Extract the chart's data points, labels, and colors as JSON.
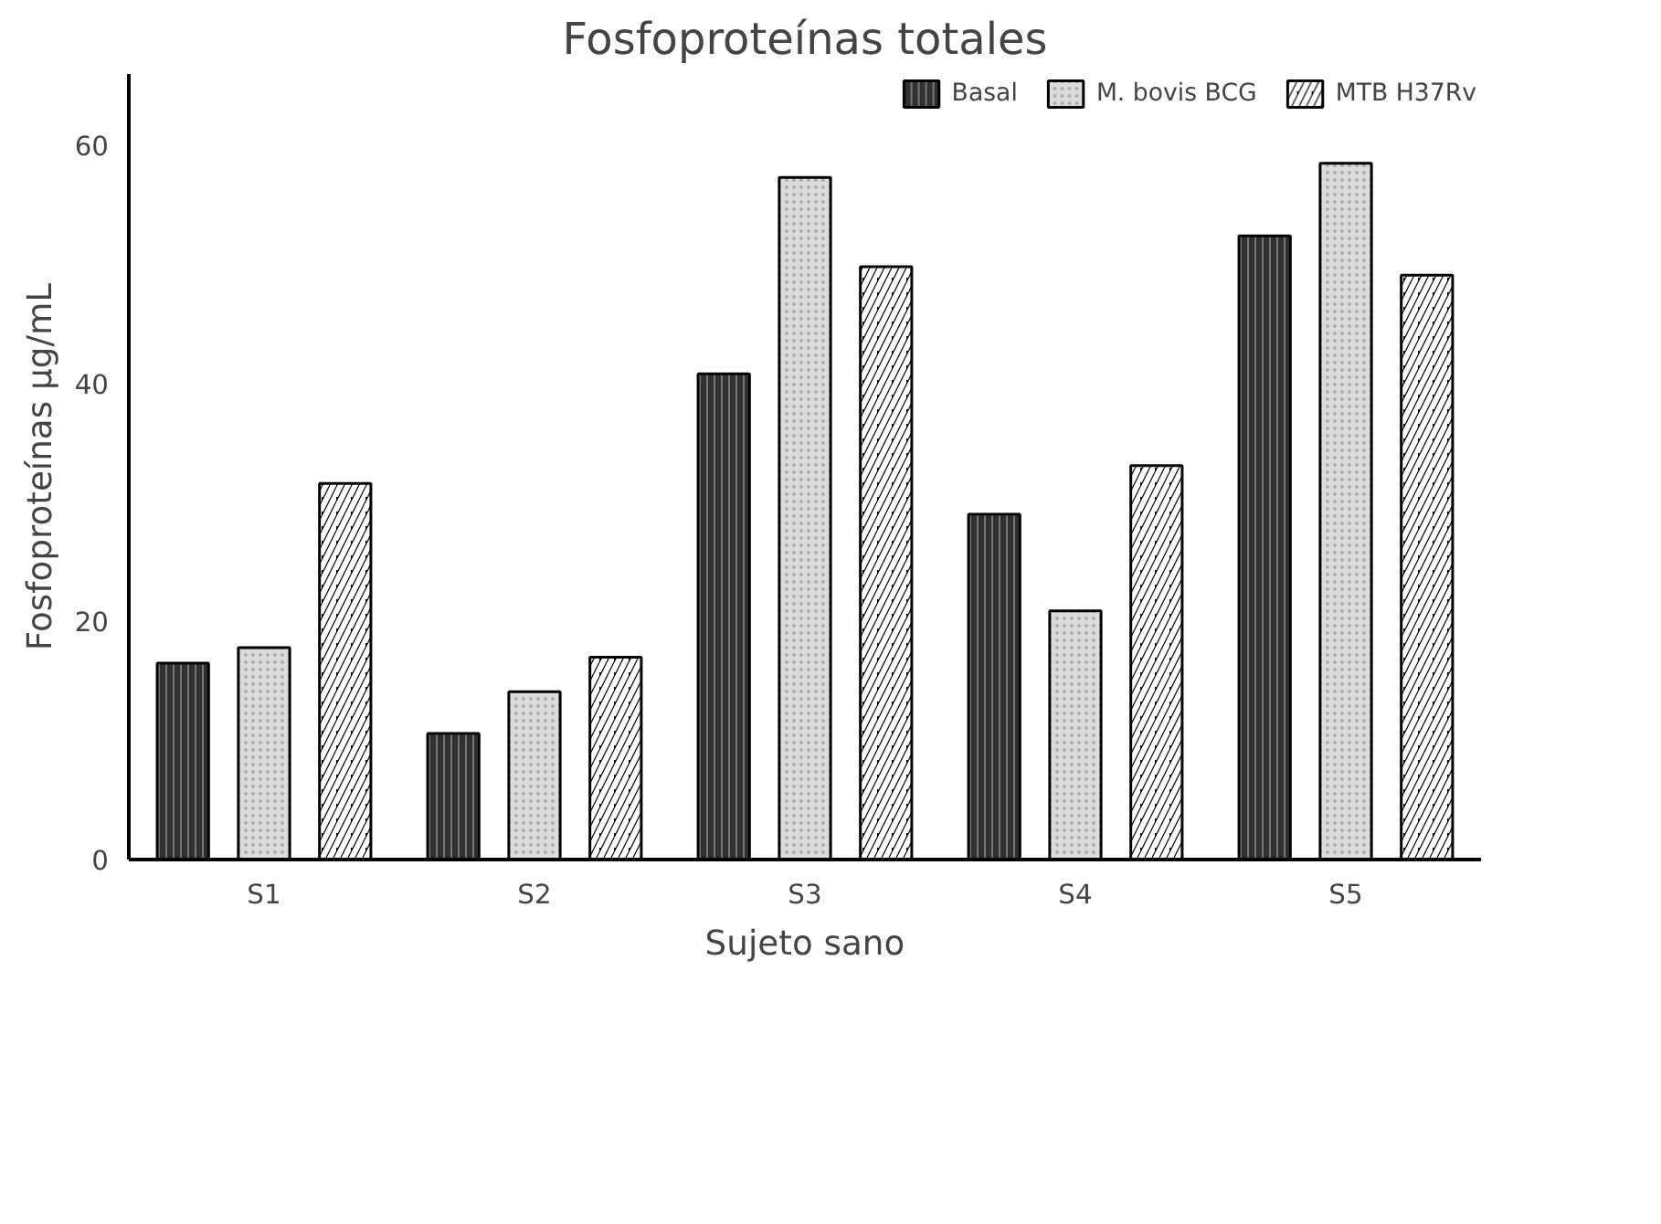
{
  "chart_data": {
    "type": "bar",
    "title": "Fosfoproteínas totales",
    "xlabel": "Sujeto sano",
    "ylabel": "Fosfoproteínas µg/mL",
    "categories": [
      "S1",
      "S2",
      "S3",
      "S4",
      "S5"
    ],
    "series": [
      {
        "name": "Basal",
        "color": "#303030",
        "values": [
          16.5,
          10.6,
          40.8,
          29.0,
          52.4
        ]
      },
      {
        "name": "M. bovis BCG",
        "color": "#dcdcdc",
        "values": [
          17.8,
          14.1,
          57.3,
          20.9,
          58.5
        ]
      },
      {
        "name": "MTB H37Rv",
        "color": "#000000",
        "values": [
          31.6,
          17.0,
          49.8,
          33.1,
          49.1
        ]
      }
    ],
    "ylim": [
      0,
      66
    ],
    "yticks": [
      0,
      20,
      40,
      60
    ],
    "grid": false,
    "legend": "top right"
  }
}
